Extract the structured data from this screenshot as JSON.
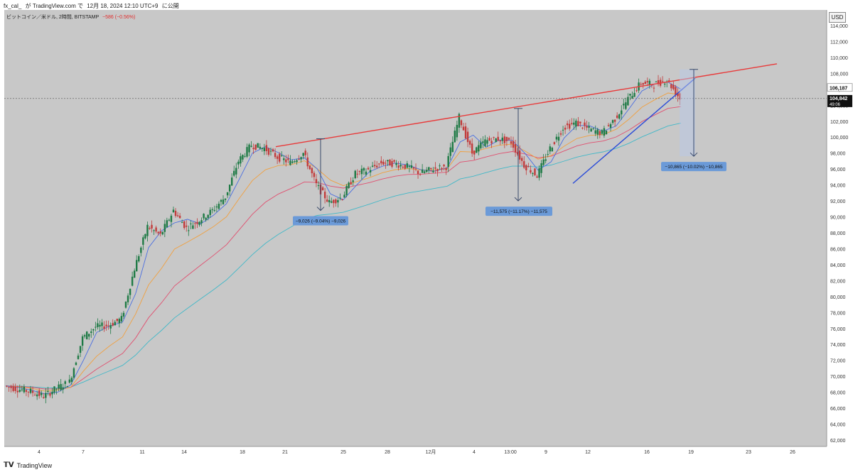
{
  "header": {
    "author": "fx_cal_",
    "mid": "が TradingView.com で",
    "date": "12月 18, 2024 12:10 UTC+9",
    "suffix": "に公開"
  },
  "legend": {
    "symbol": "ビットコイン／米ドル, 2時間, BITSTAMP",
    "change": "−586 (−0.56%)"
  },
  "footer": {
    "brand": "TradingView"
  },
  "colors": {
    "plot_bg": "#c8c8c8",
    "up": "#1e7a45",
    "down": "#c23b3b",
    "ma_fast": "#4a6ee0",
    "ma_mid": "#f0a040",
    "ma_slow": "#e05070",
    "ma_long": "#40b8c8",
    "resistance": "#e83a3a",
    "support": "#2a4bd8",
    "label_bg": "#6b9ad8"
  },
  "chart_data": {
    "type": "candlestick",
    "unit": "USD",
    "y_axis_labels": [
      "114,000",
      "112,000",
      "110,000",
      "108,000",
      "106,000",
      "104,000",
      "102,000",
      "100,000",
      "98,000",
      "96,000",
      "94,000",
      "92,000",
      "90,000",
      "88,000",
      "86,000",
      "84,000",
      "82,000",
      "80,000",
      "78,000",
      "76,000",
      "74,000",
      "72,000",
      "70,000",
      "68,000",
      "66,000",
      "64,000",
      "62,000"
    ],
    "ylim": [
      61000,
      116000
    ],
    "x_axis_labels": [
      "4",
      "7",
      "11",
      "14",
      "18",
      "21",
      "25",
      "28",
      "12月",
      "4",
      "13:00",
      "9",
      "12",
      "16",
      "19",
      "23",
      "26"
    ],
    "price_labels": [
      {
        "text": "106,187"
      },
      {
        "text": "104,842",
        "sub": "49:06"
      }
    ],
    "trendlines": [
      {
        "name": "resistance",
        "from": {
          "date": "Nov 21",
          "price": 98800
        },
        "to": {
          "date": "Dec 25",
          "price": 109200
        }
      },
      {
        "name": "support",
        "from": {
          "date": "Dec 11",
          "price": 94200
        },
        "to": {
          "date": "Dec 19",
          "price": 107400
        }
      }
    ],
    "measurements": [
      {
        "text": "−9,026 (−9.04%) −9,026",
        "from": 99800,
        "to": 90800
      },
      {
        "text": "−11,575 (−11.17%) −11,575",
        "from": 103600,
        "to": 92000
      },
      {
        "text": "−10,865 (−10.02%) −10,865",
        "from": 108500,
        "to": 97600
      }
    ],
    "close_series": [
      68800,
      68400,
      68100,
      67500,
      68500,
      69300,
      74800,
      76200,
      76400,
      77200,
      83500,
      88800,
      87700,
      90800,
      88600,
      89600,
      90800,
      92500,
      97000,
      99000,
      98600,
      97500,
      96800,
      98000,
      94000,
      91800,
      92500,
      95400,
      95900,
      96800,
      96700,
      96300,
      95500,
      96000,
      96300,
      102500,
      98000,
      99500,
      99800,
      99400,
      96500,
      95200,
      98600,
      101200,
      101800,
      101000,
      100500,
      102300,
      104800,
      106800,
      106600,
      107200,
      104842
    ]
  }
}
